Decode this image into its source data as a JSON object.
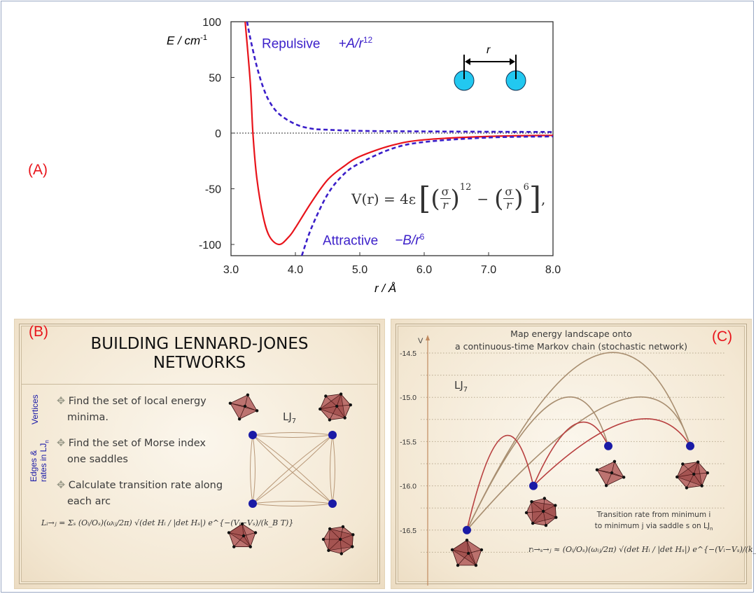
{
  "panel_a": {
    "label": "(A)",
    "repulsive_label": "Repulsive",
    "repulsive_term": "+A/r",
    "repulsive_exp": "12",
    "attractive_label": "Attractive",
    "attractive_term": "−B/r",
    "attractive_exp": "6",
    "inset_r_label": "r",
    "formula": {
      "lhs": "V(r) = 4ε",
      "sigma": "σ",
      "r": "r",
      "exp12": "12",
      "minus": "−",
      "exp6": "6",
      "tail": ","
    }
  },
  "chart_data": {
    "type": "line",
    "title": "",
    "xlabel": "r / Å",
    "ylabel": "E / cm",
    "ylabel_exp": "-1",
    "xlim": [
      3.0,
      8.0
    ],
    "ylim": [
      -110,
      100
    ],
    "xticks": [
      "3.0",
      "4.0",
      "5.0",
      "6.0",
      "7.0",
      "8.0"
    ],
    "yticks": [
      "100",
      "50",
      "0",
      "-50",
      "-100"
    ],
    "zero_line": "dotted",
    "grid": false,
    "colors": {
      "total": "#e8141b",
      "components": "#3b1fc9"
    },
    "series": [
      {
        "name": "",
        "style": "solid-red",
        "points": [
          [
            3.22,
            100
          ],
          [
            3.3,
            45
          ],
          [
            3.34,
            0
          ],
          [
            3.4,
            -40
          ],
          [
            3.5,
            -75
          ],
          [
            3.6,
            -93
          ],
          [
            3.75,
            -100
          ],
          [
            3.9,
            -93
          ],
          [
            4.0,
            -85
          ],
          [
            4.25,
            -62
          ],
          [
            4.5,
            -42
          ],
          [
            4.75,
            -30
          ],
          [
            5.0,
            -21
          ],
          [
            5.5,
            -11
          ],
          [
            6.0,
            -6
          ],
          [
            7.0,
            -3
          ],
          [
            8.0,
            -2
          ]
        ]
      },
      {
        "name": "Repulsive",
        "style": "dashed-blue",
        "points": [
          [
            3.25,
            100
          ],
          [
            3.3,
            85
          ],
          [
            3.4,
            60
          ],
          [
            3.5,
            41
          ],
          [
            3.6,
            28
          ],
          [
            3.75,
            17
          ],
          [
            4.0,
            8
          ],
          [
            4.25,
            4
          ],
          [
            4.5,
            3
          ],
          [
            5.0,
            2
          ],
          [
            6.0,
            1.5
          ],
          [
            8.0,
            1
          ]
        ]
      },
      {
        "name": "Attractive",
        "style": "dashed-blue",
        "points": [
          [
            4.1,
            -110
          ],
          [
            4.25,
            -85
          ],
          [
            4.5,
            -55
          ],
          [
            4.75,
            -37
          ],
          [
            5.0,
            -27
          ],
          [
            5.5,
            -14
          ],
          [
            6.0,
            -8
          ],
          [
            7.0,
            -4
          ],
          [
            8.0,
            -3
          ]
        ]
      }
    ]
  },
  "panel_b": {
    "label": "(B)",
    "title_line1": "BUILDING LENNARD-JONES",
    "title_line2": "NETWORKS",
    "side_vertices": "Vertices",
    "side_edges_1": "Edges &",
    "side_edges_2": "rates in LJ",
    "side_edges_sub": "n",
    "bullets": [
      {
        "line1": "Find the set of local energy",
        "line2": "minima."
      },
      {
        "line1": "Find the set of Morse index",
        "line2": "one saddles"
      },
      {
        "line1": "Calculate transition rate along",
        "line2": "each arc"
      }
    ],
    "lj_label": "LJ",
    "lj_sub": "7",
    "formula": "Lᵢ→ⱼ = Σₛ (Oᵢ/Oₛ)(ωᵢⱼ/2π) √(det Hᵢ / |det Hₛ|) e^{−(Vᵢ−Vₛ)/(k_B T)}",
    "colors": {
      "node": "#1a1aa6",
      "edge": "#b89878",
      "cluster": "#a8484a"
    }
  },
  "panel_c": {
    "label": "(C)",
    "title_line1": "Map energy landscape onto",
    "title_line2": "a continuous-time Markov chain (stochastic network)",
    "axis_label": "V",
    "yticks": [
      "-14.5",
      "-15.0",
      "-15.5",
      "-16.0",
      "-16.5"
    ],
    "lj_label": "LJ",
    "lj_sub": "7",
    "note_line1": "Transition rate from minimum i",
    "note_line2": "to minimum j via saddle s on LJ",
    "note_sub": "n",
    "formula": "rᵢ→ₛ→ⱼ ≈ (Oᵢ/Oₛ)(ωᵢⱼ/2π) √(det Hᵢ / |det Hₛ|) e^{−(Vᵢ−Vₛ)/(k_B T)}",
    "minima_energies": [
      -16.5,
      -16.0,
      -15.55,
      -15.55
    ],
    "colors": {
      "node": "#1a1aa6",
      "brown_arc": "#a88e70",
      "red_arc": "#b84040"
    }
  }
}
